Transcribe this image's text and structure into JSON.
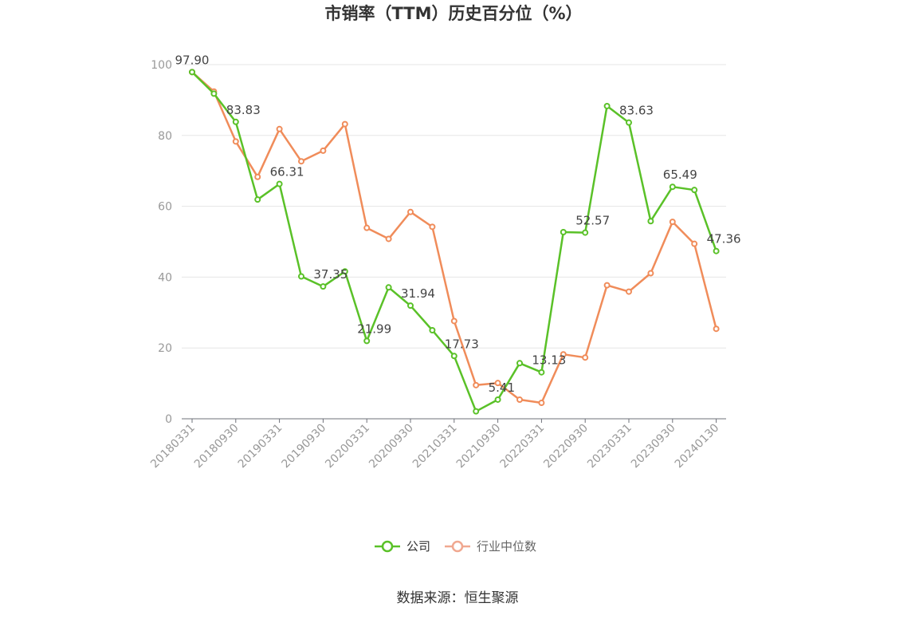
{
  "chart_data": {
    "type": "line",
    "title": "市销率（TTM）历史百分位（%）",
    "xlabel": "",
    "ylabel": "",
    "ylim": [
      0,
      100
    ],
    "yticks": [
      0,
      20,
      40,
      60,
      80,
      100
    ],
    "x_tick_labels": [
      "20180331",
      "20180930",
      "20190331",
      "20190930",
      "20200331",
      "20200930",
      "20210331",
      "20210930",
      "20220331",
      "20220930",
      "20230331",
      "20230930",
      "20240130"
    ],
    "x": [
      "20180331",
      "20180630",
      "20180930",
      "20181231",
      "20190331",
      "20190630",
      "20190930",
      "20191231",
      "20200331",
      "20200630",
      "20200930",
      "20201231",
      "20210331",
      "20210630",
      "20210930",
      "20211231",
      "20220331",
      "20220630",
      "20220930",
      "20221231",
      "20230331",
      "20230630",
      "20230930",
      "20231231",
      "20240130"
    ],
    "grid": true,
    "legend_position": "bottom",
    "series": [
      {
        "name": "公司",
        "color": "#5ac128",
        "values": [
          97.9,
          91.8,
          83.83,
          61.9,
          66.31,
          40.2,
          37.35,
          41.6,
          21.99,
          37.1,
          31.94,
          25.0,
          17.73,
          2.1,
          5.41,
          15.7,
          13.13,
          52.7,
          52.57,
          88.3,
          83.63,
          55.8,
          65.49,
          64.6,
          47.36
        ]
      },
      {
        "name": "行业中位数",
        "color": "#f08c5a",
        "values": [
          97.9,
          92.4,
          78.3,
          68.3,
          81.8,
          72.7,
          75.7,
          83.2,
          53.9,
          50.8,
          58.4,
          54.2,
          27.6,
          9.5,
          10.1,
          5.4,
          4.5,
          18.2,
          17.3,
          37.7,
          35.9,
          41.1,
          55.6,
          49.4,
          25.4
        ]
      }
    ],
    "data_labels": [
      {
        "series": 0,
        "index": 0,
        "text": "97.90"
      },
      {
        "series": 0,
        "index": 2,
        "text": "83.83"
      },
      {
        "series": 0,
        "index": 4,
        "text": "66.31"
      },
      {
        "series": 0,
        "index": 6,
        "text": "37.35"
      },
      {
        "series": 0,
        "index": 8,
        "text": "21.99"
      },
      {
        "series": 0,
        "index": 10,
        "text": "31.94"
      },
      {
        "series": 0,
        "index": 12,
        "text": "17.73"
      },
      {
        "series": 0,
        "index": 14,
        "text": "5.41"
      },
      {
        "series": 0,
        "index": 16,
        "text": "13.13"
      },
      {
        "series": 0,
        "index": 18,
        "text": "52.57"
      },
      {
        "series": 0,
        "index": 20,
        "text": "83.63"
      },
      {
        "series": 0,
        "index": 22,
        "text": "65.49"
      },
      {
        "series": 0,
        "index": 24,
        "text": "47.36"
      }
    ]
  },
  "legend": {
    "items": [
      {
        "label": "公司",
        "color": "#5ac128"
      },
      {
        "label": "行业中位数",
        "color": "#f0a890"
      }
    ]
  },
  "source": "数据来源：恒生聚源"
}
